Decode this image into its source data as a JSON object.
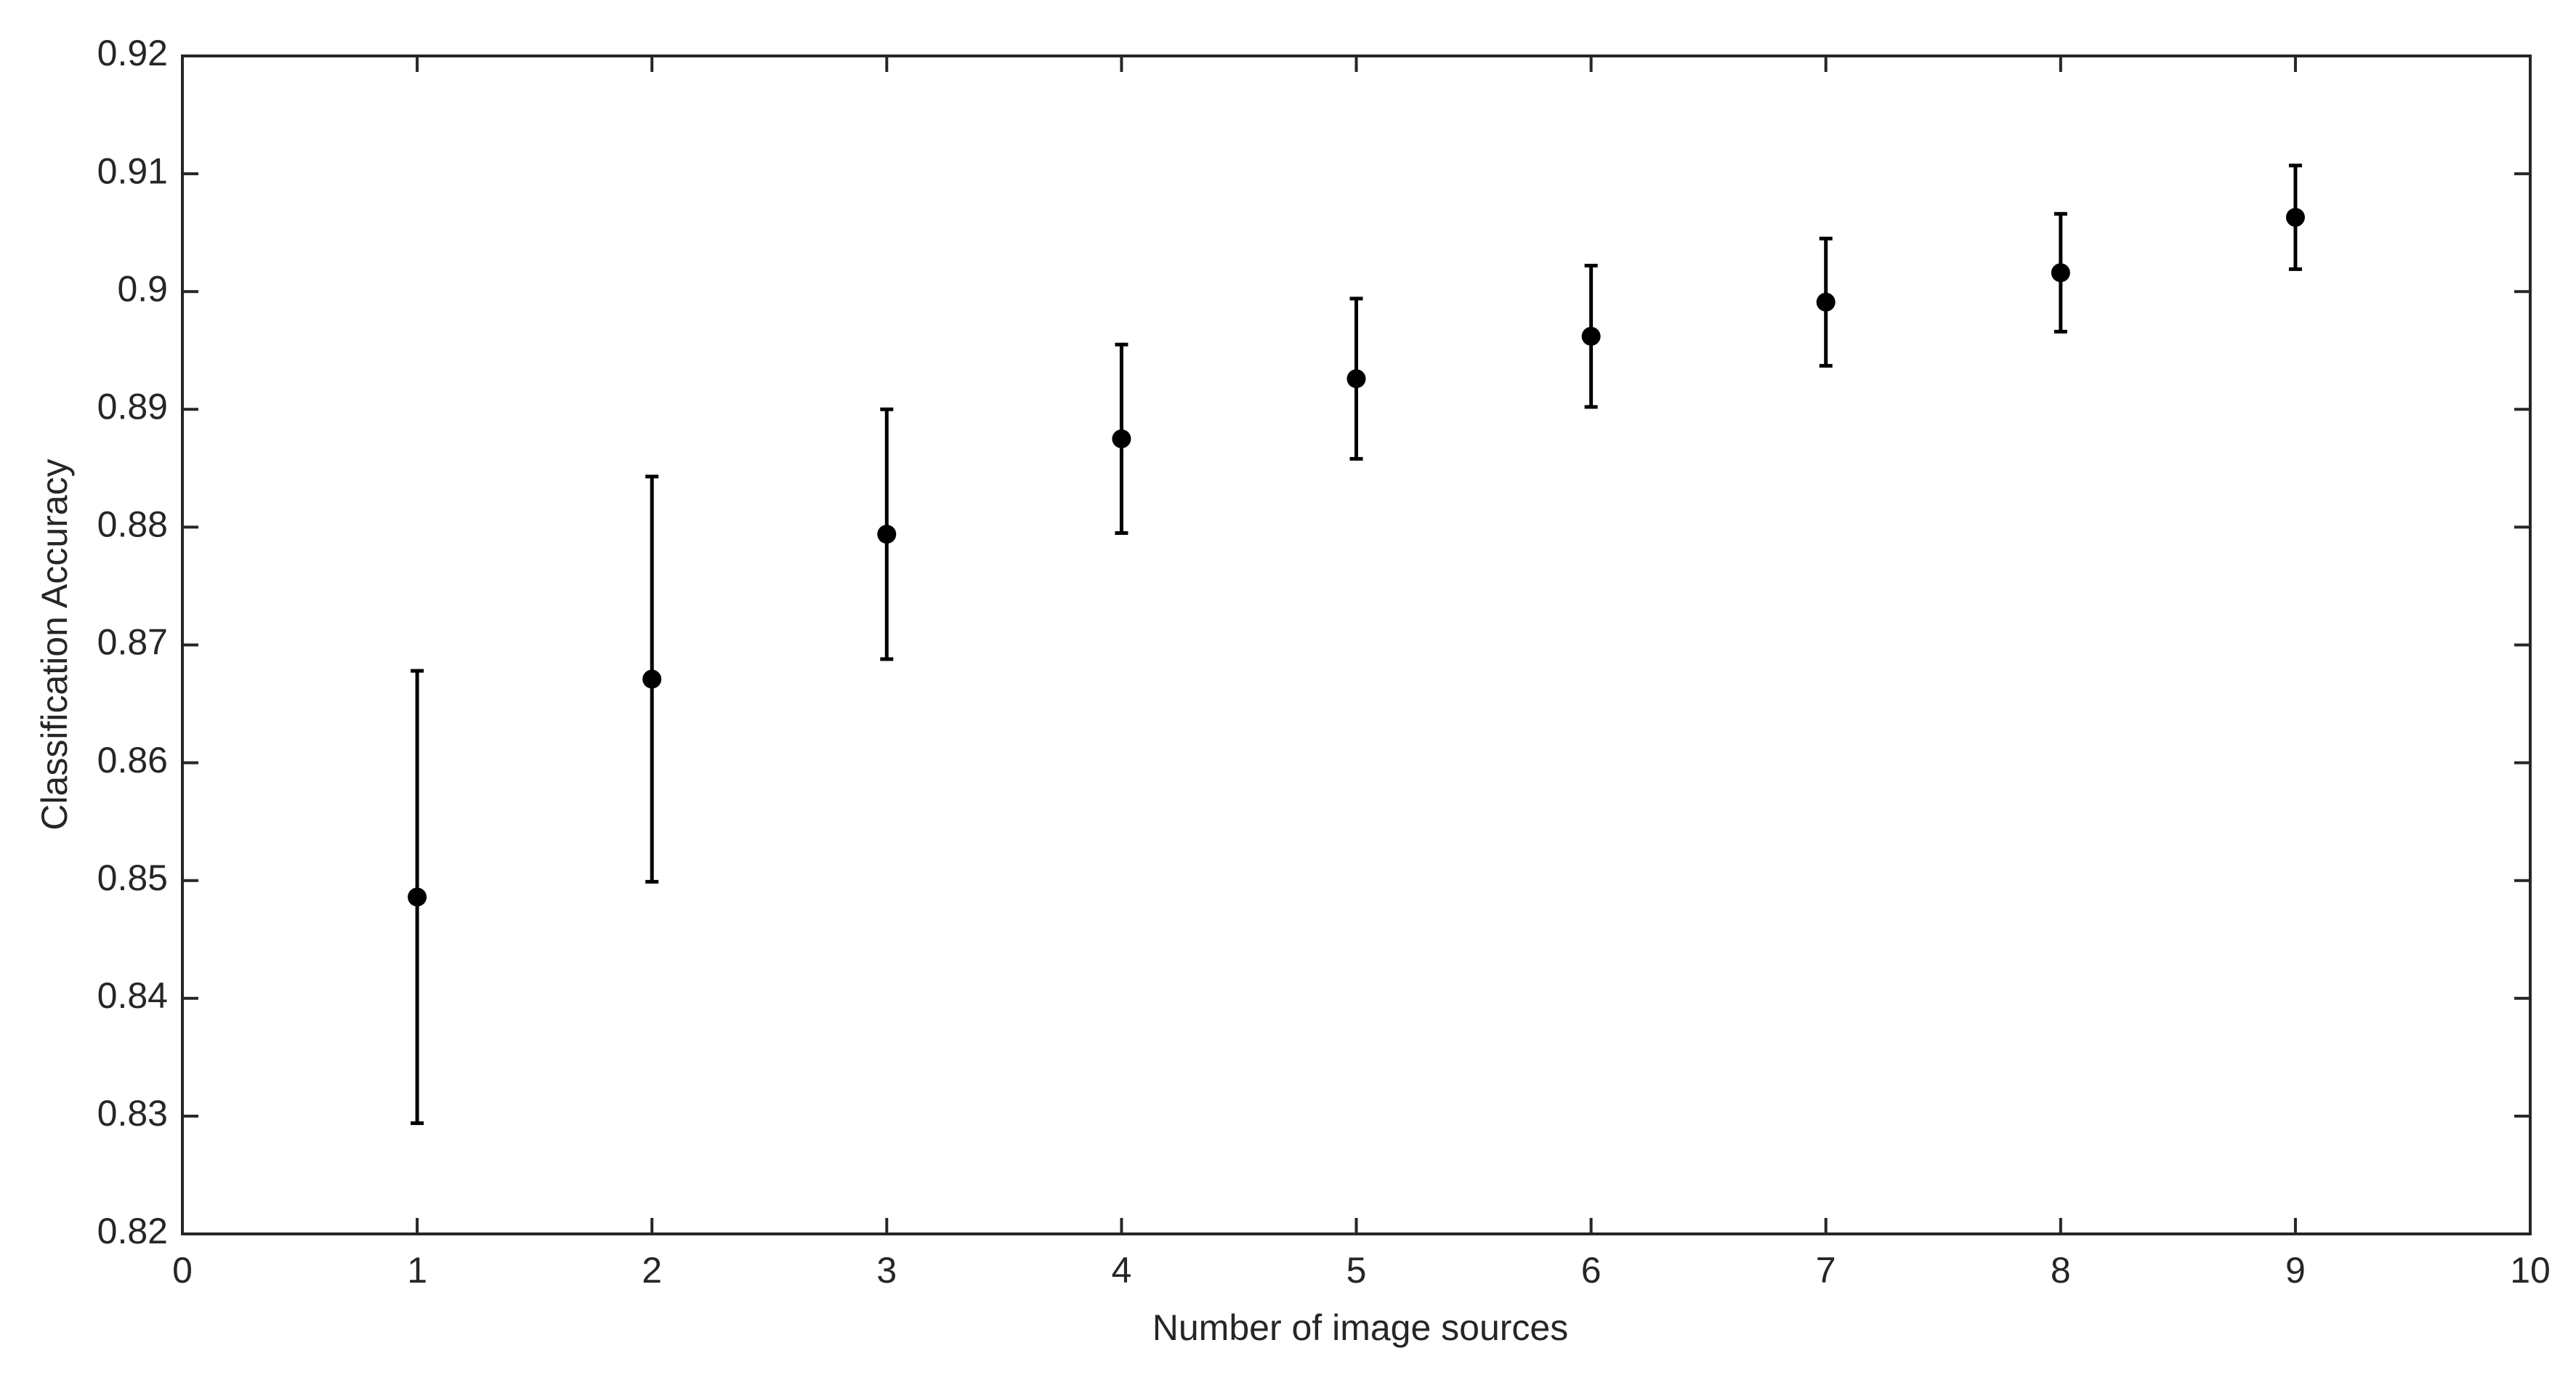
{
  "chart_data": {
    "type": "errorbar",
    "x_label": "Number of image sources",
    "y_label": "Classification Accuracy",
    "x": [
      1,
      2,
      3,
      4,
      5,
      6,
      7,
      8,
      9
    ],
    "values": [
      0.8486,
      0.8671,
      0.8794,
      0.8875,
      0.8926,
      0.8962,
      0.8991,
      0.9016,
      0.9063
    ],
    "errors": [
      0.0192,
      0.0172,
      0.0106,
      0.008,
      0.0068,
      0.006,
      0.0054,
      0.005,
      0.0044
    ],
    "color": "#000000",
    "xlim": [
      0,
      10
    ],
    "xticks": [
      0,
      1,
      2,
      3,
      4,
      5,
      6,
      7,
      8,
      9,
      10
    ],
    "ylim": [
      0.82,
      0.92
    ],
    "yticks": [
      0.82,
      0.83,
      0.84,
      0.85,
      0.86,
      0.87,
      0.88,
      0.89,
      0.9,
      0.91,
      0.92
    ],
    "grid": false
  }
}
